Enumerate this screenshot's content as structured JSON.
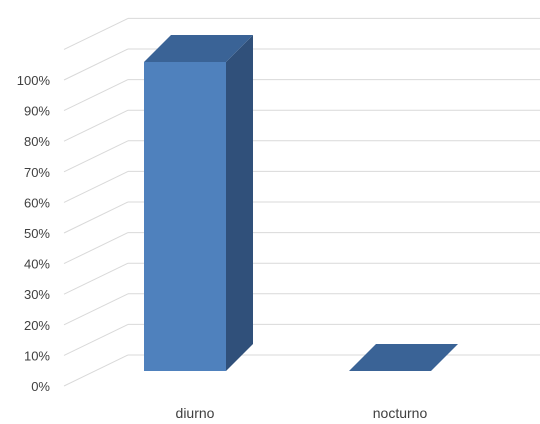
{
  "chart_data": {
    "type": "bar",
    "title": "",
    "xlabel": "",
    "ylabel": "",
    "categories": [
      "diurno",
      "nocturno"
    ],
    "series": [
      {
        "values": [
          100,
          0
        ]
      }
    ],
    "ylim": [
      0,
      100
    ],
    "y_ticks": [
      "0%",
      "10%",
      "20%",
      "30%",
      "40%",
      "50%",
      "60%",
      "70%",
      "80%",
      "90%",
      "100%"
    ],
    "grid": true,
    "style": "3d-column",
    "colors": {
      "front": "#4F81BD",
      "side": "#30507A",
      "top": "#3A6396",
      "grid": "#D9D9D9"
    }
  }
}
